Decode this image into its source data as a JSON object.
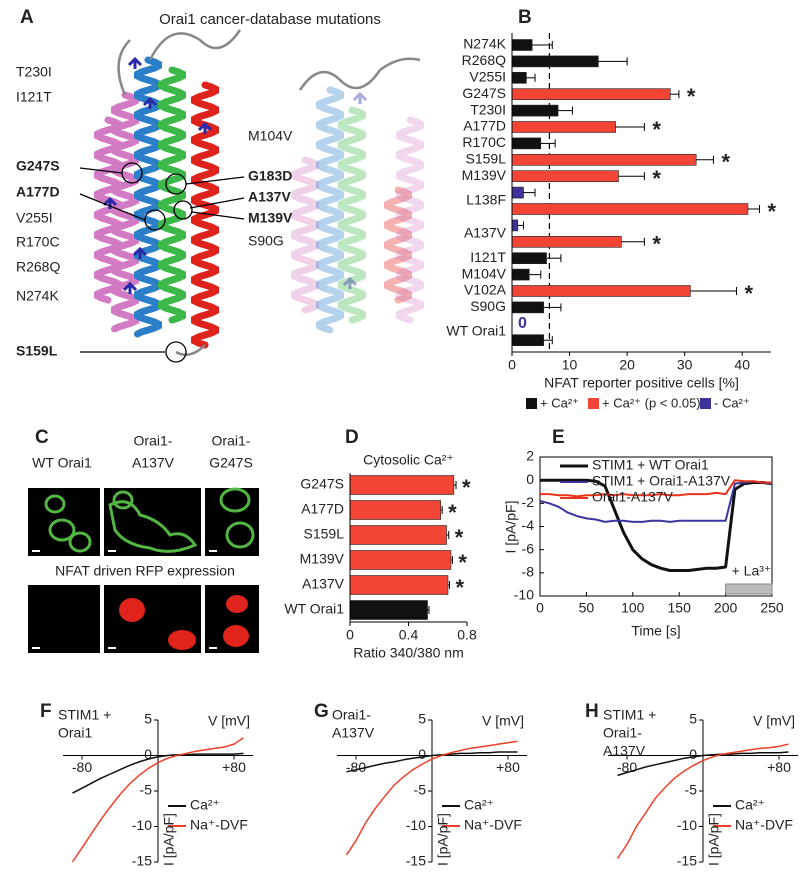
{
  "structure": {
    "panel": "A",
    "title": "Orai1 cancer-database mutations",
    "labels_left": [
      "T230I",
      "I121T",
      "G247S",
      "A177D",
      "V255I",
      "R170C",
      "R268Q",
      "N274K",
      "S159L"
    ],
    "labels_right": [
      "M104V",
      "G183D",
      "A137V",
      "M139V",
      "S90G"
    ]
  },
  "imaging": {
    "panel": "C",
    "columns": [
      [
        "WT Orai1"
      ],
      [
        "Orai1-",
        "A137V"
      ],
      [
        "Orai1-",
        "G247S"
      ]
    ],
    "caption": "NFAT driven RFP expression"
  },
  "chart_data": [
    {
      "type": "bar",
      "panel": "B",
      "orientation": "horizontal",
      "categories": [
        "N274K",
        "R268Q",
        "V255I",
        "G247S",
        "T230I",
        "A177D",
        "R170C",
        "S159L",
        "M139V",
        null,
        "L138F",
        null,
        "A137V",
        "I121T",
        "M104V",
        "V102A",
        "S90G",
        null,
        "WT Orai1"
      ],
      "series": [
        {
          "name": "+ Ca²⁺",
          "color": "#111111",
          "values": [
            3.5,
            15,
            2.5,
            null,
            8,
            null,
            5,
            null,
            null,
            null,
            null,
            null,
            null,
            6,
            3,
            null,
            5.5,
            null,
            5.5
          ],
          "errors": [
            3.5,
            5,
            1.5,
            null,
            2.5,
            null,
            2.5,
            null,
            null,
            null,
            null,
            null,
            null,
            2.5,
            2,
            null,
            3,
            null,
            1.5
          ]
        },
        {
          "name": "+ Ca²⁺ (p < 0.05)",
          "color": "#f24535",
          "values": [
            null,
            null,
            null,
            27.5,
            null,
            18,
            null,
            32,
            18.5,
            null,
            41,
            null,
            19,
            null,
            null,
            31,
            null,
            null,
            null
          ],
          "errors": [
            null,
            null,
            null,
            1.5,
            null,
            5,
            null,
            3,
            4.5,
            null,
            2,
            null,
            4,
            null,
            null,
            8,
            null,
            null,
            null
          ]
        },
        {
          "name": "- Ca²⁺",
          "color": "#3d3399",
          "values": [
            null,
            null,
            null,
            null,
            null,
            null,
            null,
            null,
            null,
            2,
            null,
            1,
            null,
            null,
            null,
            null,
            null,
            0,
            null
          ],
          "errors": [
            null,
            null,
            null,
            null,
            null,
            null,
            null,
            null,
            null,
            2,
            null,
            1,
            null,
            null,
            null,
            null,
            null,
            null,
            null
          ]
        }
      ],
      "stars": [
        null,
        null,
        null,
        "*",
        null,
        "*",
        null,
        "*",
        "*",
        null,
        "*",
        null,
        "*",
        null,
        null,
        "*",
        null,
        null,
        null
      ],
      "reference_line": 6.5,
      "xlim": [
        0,
        45
      ],
      "xticks": [
        0,
        10,
        20,
        30,
        40
      ],
      "xlabel": "NFAT reporter positive cells [%]"
    },
    {
      "type": "bar",
      "panel": "D",
      "orientation": "horizontal",
      "title": "Cytosolic Ca²⁺",
      "categories": [
        "G247S",
        "A177D",
        "S159L",
        "M139V",
        "A137V",
        "WT Orai1"
      ],
      "series": [
        {
          "color": "#f24535",
          "values": [
            0.71,
            0.62,
            0.66,
            0.69,
            0.67,
            null
          ],
          "errors": [
            0.015,
            0.01,
            0.015,
            0.01,
            0.01,
            null
          ]
        },
        {
          "color": "#111111",
          "values": [
            null,
            null,
            null,
            null,
            null,
            0.53
          ],
          "errors": [
            null,
            null,
            null,
            null,
            null,
            0.01
          ]
        }
      ],
      "stars": [
        "*",
        "*",
        "*",
        "*",
        "*",
        null
      ],
      "xlim": [
        0,
        0.8
      ],
      "xticks": [
        0,
        0.4,
        0.8
      ],
      "xlabel": "Ratio 340/380 nm"
    },
    {
      "type": "line",
      "panel": "E",
      "x": [
        0,
        10,
        20,
        30,
        40,
        50,
        60,
        70,
        80,
        90,
        100,
        110,
        120,
        130,
        140,
        150,
        160,
        170,
        180,
        190,
        200,
        210,
        220,
        230,
        240,
        250
      ],
      "series": [
        {
          "name": "STIM1 + WT Orai1",
          "color": "#111111",
          "values": [
            0,
            0,
            0,
            0,
            0,
            0,
            -0.1,
            -0.5,
            -2.5,
            -4.5,
            -6,
            -6.8,
            -7.3,
            -7.6,
            -7.8,
            -7.8,
            -7.8,
            -7.7,
            -7.6,
            -7.6,
            -7.5,
            -0.8,
            -0.3,
            -0.2,
            -0.2,
            -0.3
          ]
        },
        {
          "name": "STIM1 + Orai1-A137V",
          "color": "#3a35a0",
          "values": [
            -1.8,
            -2,
            -2.3,
            -2.8,
            -3.1,
            -3.3,
            -3.4,
            -3.6,
            -3.5,
            -3.5,
            -3.6,
            -3.6,
            -3.5,
            -3.5,
            -3.6,
            -3.5,
            -3.5,
            -3.5,
            -3.5,
            -3.5,
            -3.5,
            -0.3,
            -0.2,
            -0.1,
            -0.2,
            -0.3
          ]
        },
        {
          "name": "Orai1-A137V",
          "color": "#e8331c",
          "values": [
            -1.2,
            -1.2,
            -1.3,
            -1.3,
            -1.4,
            -1.3,
            -1.3,
            -1.2,
            -1.3,
            -1.2,
            -1.3,
            -1.3,
            -1.3,
            -1.2,
            -1.3,
            -1.3,
            -1.2,
            -1.2,
            -1.2,
            -1.1,
            -1.2,
            0,
            -0.1,
            -0.1,
            -0.2,
            -0.2
          ]
        }
      ],
      "annotation": {
        "text": "+ La³⁺",
        "x_range": [
          200,
          250
        ]
      },
      "xlim": [
        0,
        250
      ],
      "xticks": [
        0,
        50,
        100,
        150,
        200,
        250
      ],
      "ylim": [
        -10,
        2
      ],
      "yticks": [
        -10,
        -8,
        -6,
        -4,
        -2,
        0,
        2
      ],
      "xlabel": "Time [s]",
      "ylabel": "I [pA/pF]"
    },
    {
      "type": "line",
      "panel": "F",
      "title": [
        "STIM1 +",
        "Orai1"
      ],
      "x": [
        -90,
        -80,
        -70,
        -60,
        -50,
        -40,
        -30,
        -20,
        -10,
        0,
        10,
        20,
        30,
        40,
        50,
        60,
        70,
        80,
        90
      ],
      "series": [
        {
          "name": "Ca²⁺",
          "color": "#111111",
          "values": [
            -5.3,
            -4.6,
            -3.9,
            -3.2,
            -2.6,
            -2,
            -1.4,
            -0.9,
            -0.5,
            -0.2,
            0,
            0.1,
            0.1,
            0.2,
            0.2,
            0.2,
            0.2,
            0.2,
            0.3
          ]
        },
        {
          "name": "Na⁺-DVF",
          "color": "#f0402a",
          "values": [
            -15,
            -13,
            -11,
            -9,
            -7.2,
            -5.5,
            -4,
            -2.8,
            -1.8,
            -1,
            -0.4,
            0,
            0.3,
            0.6,
            0.8,
            1,
            1.2,
            1.6,
            2.5
          ]
        }
      ],
      "xlim": [
        -100,
        100
      ],
      "xticks": [
        -80,
        {
          "value": 80,
          "label": "+80"
        }
      ],
      "ylim": [
        -15,
        5
      ],
      "yticks": [
        5,
        0,
        -5,
        -10,
        -15
      ],
      "xlabel": "V [mV]",
      "ylabel": "I [pA/pF]"
    },
    {
      "type": "line",
      "panel": "G",
      "title": [
        "Orai1-",
        "A137V"
      ],
      "x": [
        -90,
        -80,
        -70,
        -60,
        -50,
        -40,
        -30,
        -20,
        -10,
        0,
        10,
        20,
        30,
        40,
        50,
        60,
        70,
        80,
        90
      ],
      "series": [
        {
          "name": "Ca²⁺",
          "color": "#111111",
          "values": [
            -2.3,
            -2,
            -1.7,
            -1.4,
            -1.1,
            -0.9,
            -0.6,
            -0.4,
            -0.2,
            0,
            0.1,
            0.2,
            0.3,
            0.3,
            0.4,
            0.4,
            0.5,
            0.5,
            0.5
          ]
        },
        {
          "name": "Na⁺-DVF",
          "color": "#f0402a",
          "values": [
            -14,
            -12,
            -9.5,
            -7.5,
            -5.8,
            -4.2,
            -3,
            -2,
            -1.2,
            -0.5,
            0,
            0.4,
            0.7,
            1,
            1.2,
            1.4,
            1.6,
            1.8,
            2
          ]
        }
      ],
      "xlim": [
        -100,
        100
      ],
      "xticks": [
        -80,
        {
          "value": 80,
          "label": "+80"
        }
      ],
      "ylim": [
        -15,
        5
      ],
      "yticks": [
        5,
        0,
        -5,
        -10,
        -15
      ],
      "xlabel": "V [mV]",
      "ylabel": "I [pA/pF]"
    },
    {
      "type": "line",
      "panel": "H",
      "title": [
        "STIM1 +",
        "Orai1-",
        "A137V"
      ],
      "x": [
        -90,
        -80,
        -70,
        -60,
        -50,
        -40,
        -30,
        -20,
        -10,
        0,
        10,
        20,
        30,
        40,
        50,
        60,
        70,
        80,
        90
      ],
      "series": [
        {
          "name": "Ca²⁺",
          "color": "#111111",
          "values": [
            -2.8,
            -2.4,
            -2,
            -1.6,
            -1.3,
            -1,
            -0.7,
            -0.4,
            -0.2,
            0,
            0.1,
            0.2,
            0.2,
            0.3,
            0.3,
            0.4,
            0.4,
            0.4,
            0.5
          ]
        },
        {
          "name": "Na⁺-DVF",
          "color": "#f0402a",
          "values": [
            -14.5,
            -12.5,
            -10,
            -8,
            -6,
            -4.5,
            -3.2,
            -2.2,
            -1.4,
            -0.7,
            -0.2,
            0.2,
            0.4,
            0.6,
            0.8,
            1,
            1.1,
            1.3,
            1.6
          ]
        }
      ],
      "xlim": [
        -100,
        100
      ],
      "xticks": [
        -80,
        {
          "value": 80,
          "label": "+80"
        }
      ],
      "ylim": [
        -15,
        5
      ],
      "yticks": [
        5,
        0,
        -5,
        -10,
        -15
      ],
      "xlabel": "V [mV]",
      "ylabel": "I [pA/pF]"
    }
  ]
}
